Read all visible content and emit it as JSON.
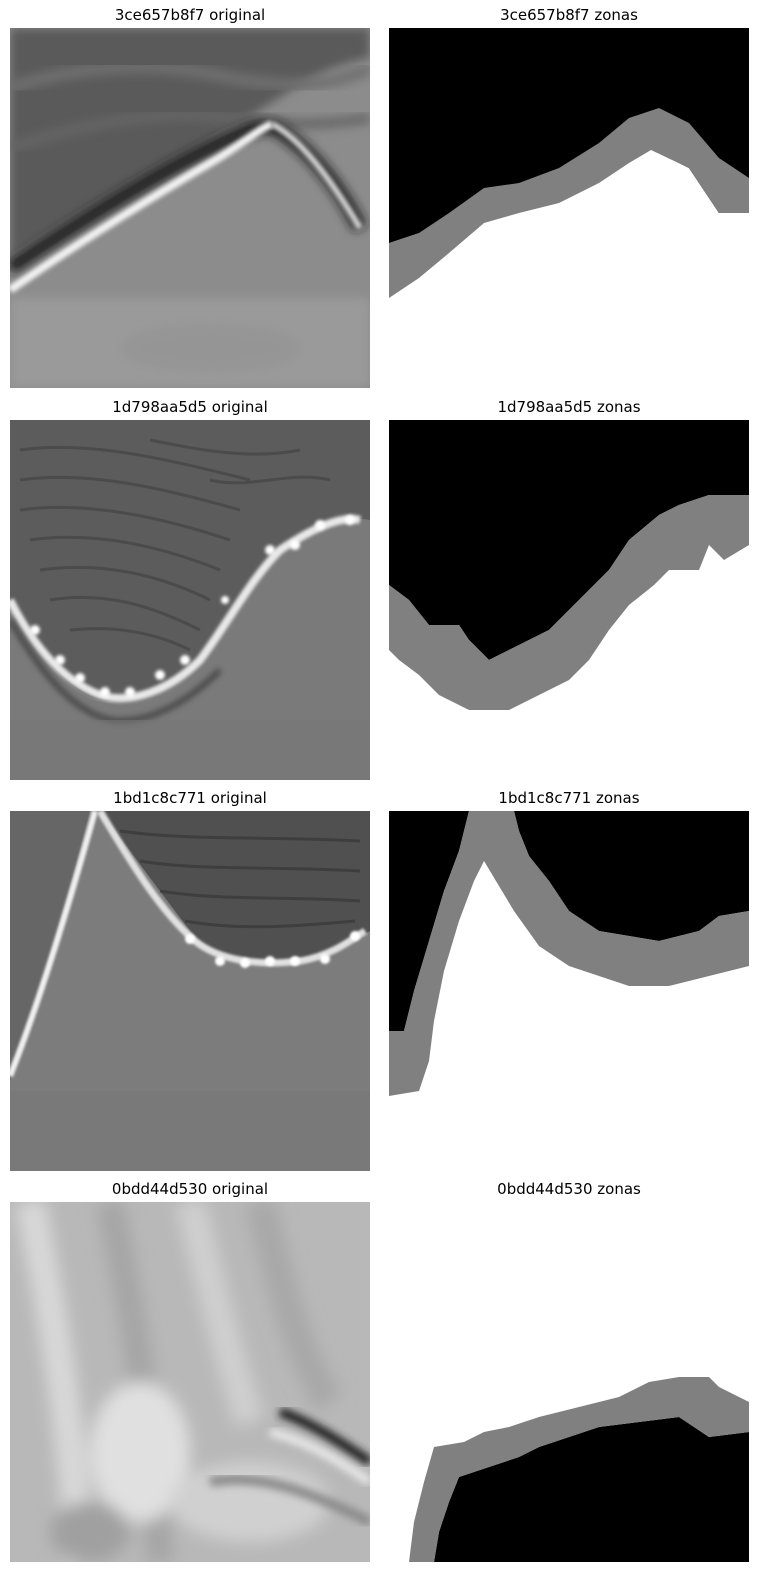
{
  "panels": [
    {
      "title": "3ce657b8f7 original",
      "kind": "original"
    },
    {
      "title": "3ce657b8f7 zonas",
      "kind": "mask"
    },
    {
      "title": "1d798aa5d5 original",
      "kind": "original"
    },
    {
      "title": "1d798aa5d5 zonas",
      "kind": "mask"
    },
    {
      "title": "1bd1c8c771 original",
      "kind": "original"
    },
    {
      "title": "1bd1c8c771 zonas",
      "kind": "mask"
    },
    {
      "title": "0bdd44d530 original",
      "kind": "original"
    },
    {
      "title": "0bdd44d530 zonas",
      "kind": "mask"
    }
  ],
  "colors": {
    "mask_dark": "#000000",
    "mask_boundary": "#808080",
    "mask_light": "#ffffff"
  }
}
